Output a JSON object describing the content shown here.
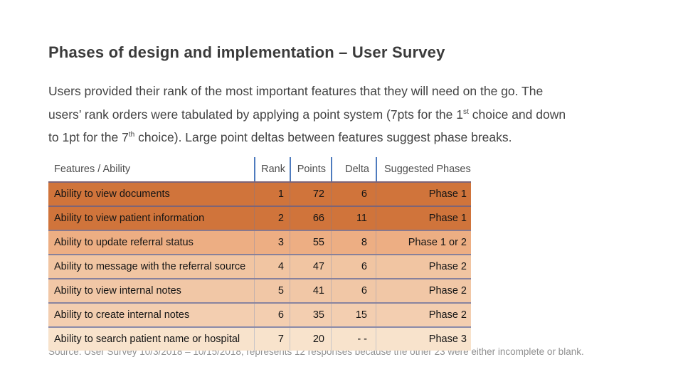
{
  "slide": {
    "title": "Phases of design and implementation – User Survey",
    "intro": {
      "line1": "Users provided their rank of the most important features that they will need on the go. The",
      "line2_pre": "users’ rank orders were tabulated by applying a point system (7pts for the 1",
      "line2_sup": "st",
      "line2_post": " choice and down",
      "line3_pre": "to 1pt for the 7",
      "line3_sup": "th",
      "line3_post": " choice). Large point deltas between features suggest phase breaks.",
      "text_full": "Users provided their rank of the most important features that they will need on the go. The users’ rank orders were tabulated by applying a point system (7pts for the 1st choice and down to 1pt for the 7th choice). Large point deltas between features suggest phase breaks."
    },
    "source": "Source: User Survey 10/3/2018 – 10/15/2018, represents 12 responses because the other 23 were either incomplete or blank."
  },
  "table": {
    "headers": [
      "Features / Ability",
      "Rank",
      "Points",
      "Delta",
      "Suggested Phases"
    ],
    "rows": [
      {
        "feature": "Ability to view documents",
        "rank": "1",
        "points": "72",
        "delta": "6",
        "phase": "Phase 1",
        "bg": "#D0743B"
      },
      {
        "feature": "Ability to view patient information",
        "rank": "2",
        "points": "66",
        "delta": "11",
        "phase": "Phase 1",
        "bg": "#D0743B"
      },
      {
        "feature": "Ability to update referral status",
        "rank": "3",
        "points": "55",
        "delta": "8",
        "phase": "Phase 1 or 2",
        "bg": "#EDAE83"
      },
      {
        "feature": "Ability to message with the referral source",
        "rank": "4",
        "points": "47",
        "delta": "6",
        "phase": "Phase 2",
        "bg": "#F1C5A2"
      },
      {
        "feature": "Ability to view internal notes",
        "rank": "5",
        "points": "41",
        "delta": "6",
        "phase": "Phase 2",
        "bg": "#F1C7A6"
      },
      {
        "feature": "Ability to create internal notes",
        "rank": "6",
        "points": "35",
        "delta": "15",
        "phase": "Phase 2",
        "bg": "#F3CEB0"
      },
      {
        "feature": "Ability to search patient name or hospital",
        "rank": "7",
        "points": "20",
        "delta": "- -",
        "phase": "Phase 3",
        "bg": "#F8E3CC"
      }
    ]
  },
  "colors": {
    "header_divider": "#4E7BBE",
    "row_divider": "rgba(80,92,150,0.65)",
    "column_divider_faint": "rgba(78,123,190,0.28)",
    "dark_row": "#D0743B",
    "title_text": "#3b3b3b",
    "body_text": "#424242",
    "source_text": "#909090"
  }
}
